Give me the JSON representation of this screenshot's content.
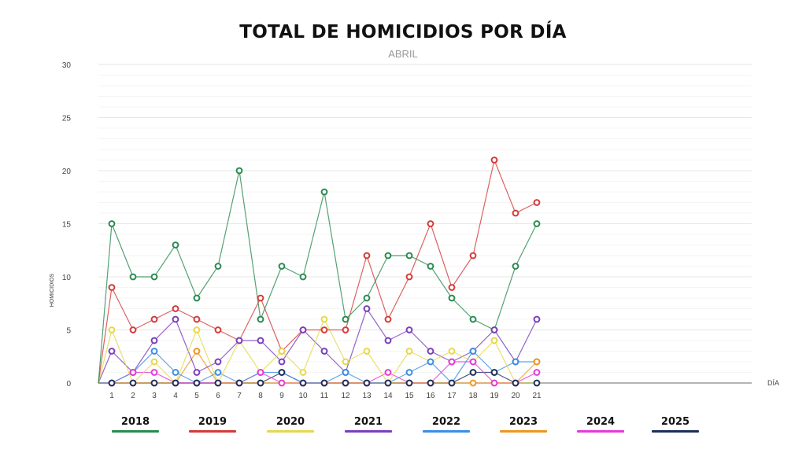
{
  "chart_data": {
    "type": "line",
    "title": "TOTAL DE HOMICIDIOS POR DÍA",
    "subtitle": "ABRIL",
    "xlabel": "DÍA",
    "ylabel": "HOMICIDIOS",
    "ylim": [
      0,
      30
    ],
    "yticks": [
      "0",
      "5",
      "10",
      "15",
      "20",
      "25",
      "30"
    ],
    "x": [
      1,
      2,
      3,
      4,
      5,
      6,
      7,
      8,
      9,
      10,
      11,
      12,
      13,
      14,
      15,
      16,
      17,
      18,
      19,
      20,
      21
    ],
    "xtick_labels": [
      "1",
      "2",
      "3",
      "4",
      "5",
      "6",
      "7",
      "8",
      "9",
      "10",
      "11",
      "12",
      "13",
      "14",
      "15",
      "16",
      "17",
      "18",
      "19",
      "20",
      "21"
    ],
    "grid": true,
    "legend_position": "bottom",
    "series": [
      {
        "name": "2018",
        "color": "#2a8a50",
        "values": [
          15,
          10,
          10,
          13,
          8,
          11,
          20,
          6,
          11,
          10,
          18,
          6,
          8,
          12,
          12,
          11,
          8,
          6,
          5,
          11,
          15
        ]
      },
      {
        "name": "2019",
        "color": "#d63a3a",
        "values": [
          9,
          5,
          6,
          7,
          6,
          5,
          4,
          8,
          3,
          5,
          5,
          5,
          12,
          6,
          10,
          15,
          9,
          12,
          21,
          16,
          17
        ]
      },
      {
        "name": "2020",
        "color": "#e6d84a",
        "values": [
          5,
          0,
          2,
          0,
          5,
          0,
          4,
          1,
          3,
          1,
          6,
          2,
          3,
          0,
          3,
          2,
          3,
          2,
          4,
          0,
          0
        ]
      },
      {
        "name": "2021",
        "color": "#7a3ebd",
        "values": [
          3,
          1,
          4,
          6,
          1,
          2,
          4,
          4,
          2,
          5,
          3,
          1,
          7,
          4,
          5,
          3,
          2,
          3,
          5,
          2,
          6
        ]
      },
      {
        "name": "2022",
        "color": "#3a8ee6",
        "values": [
          0,
          1,
          3,
          1,
          0,
          1,
          0,
          1,
          1,
          0,
          0,
          1,
          0,
          0,
          1,
          2,
          0,
          3,
          1,
          2,
          2
        ]
      },
      {
        "name": "2023",
        "color": "#f0961e",
        "values": [
          0,
          0,
          0,
          0,
          3,
          0,
          0,
          0,
          0,
          0,
          0,
          0,
          0,
          0,
          0,
          0,
          0,
          0,
          0,
          0,
          2
        ]
      },
      {
        "name": "2024",
        "color": "#e63ad6",
        "values": [
          0,
          1,
          1,
          0,
          0,
          0,
          0,
          1,
          0,
          0,
          0,
          0,
          0,
          1,
          0,
          0,
          2,
          2,
          0,
          0,
          1
        ]
      },
      {
        "name": "2025",
        "color": "#1c2f5a",
        "values": [
          0,
          0,
          0,
          0,
          0,
          0,
          0,
          0,
          1,
          0,
          0,
          0,
          0,
          0,
          0,
          0,
          0,
          1,
          1,
          0,
          0
        ]
      }
    ]
  }
}
